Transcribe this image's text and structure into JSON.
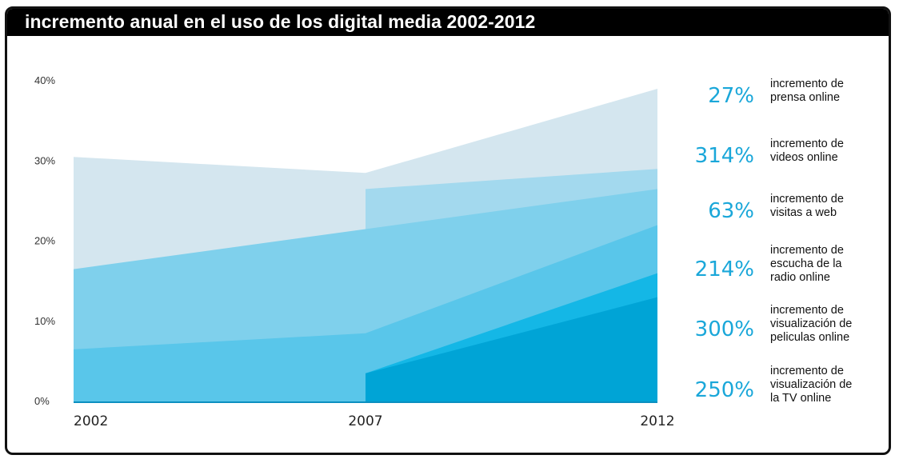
{
  "title": "incremento anual en el uso de los digital media 2002-2012",
  "colors": {
    "frame": "#111111",
    "title_bg": "#000000",
    "title_text": "#ffffff",
    "pct_text": "#1aa7d9"
  },
  "stats": [
    {
      "pct": "27%",
      "lines": [
        "incremento de",
        "prensa online"
      ]
    },
    {
      "pct": "314%",
      "lines": [
        "incremento de",
        "videos online"
      ]
    },
    {
      "pct": "63%",
      "lines": [
        "incremento de",
        "visitas a web"
      ]
    },
    {
      "pct": "214%",
      "lines": [
        "incremento de",
        "escucha de la",
        "radio online"
      ]
    },
    {
      "pct": "300%",
      "lines": [
        "incremento de",
        "visualización de",
        "peliculas online"
      ]
    },
    {
      "pct": "250%",
      "lines": [
        "incremento de",
        "visualización de",
        "la TV online"
      ]
    }
  ],
  "chart_data": {
    "type": "area",
    "x": [
      "2002",
      "2007",
      "2012"
    ],
    "ylim": [
      0,
      40
    ],
    "yticks": [
      "0%",
      "10%",
      "20%",
      "30%",
      "40%"
    ],
    "grid": false,
    "legend": "none",
    "series": [
      {
        "color": "#d4e6ef",
        "values": [
          30.5,
          28.5,
          39
        ]
      },
      {
        "color": "#a3d9ee",
        "values": [
          null,
          26.5,
          29
        ]
      },
      {
        "color": "#7fd0ec",
        "values": [
          16.5,
          21.5,
          26.5
        ]
      },
      {
        "color": "#59c6ea",
        "values": [
          6.5,
          8.5,
          22
        ]
      },
      {
        "color": "#14b7e6",
        "values": [
          null,
          3.5,
          16
        ]
      },
      {
        "color": "#00a4d6",
        "values": [
          null,
          3.5,
          13
        ]
      }
    ]
  }
}
